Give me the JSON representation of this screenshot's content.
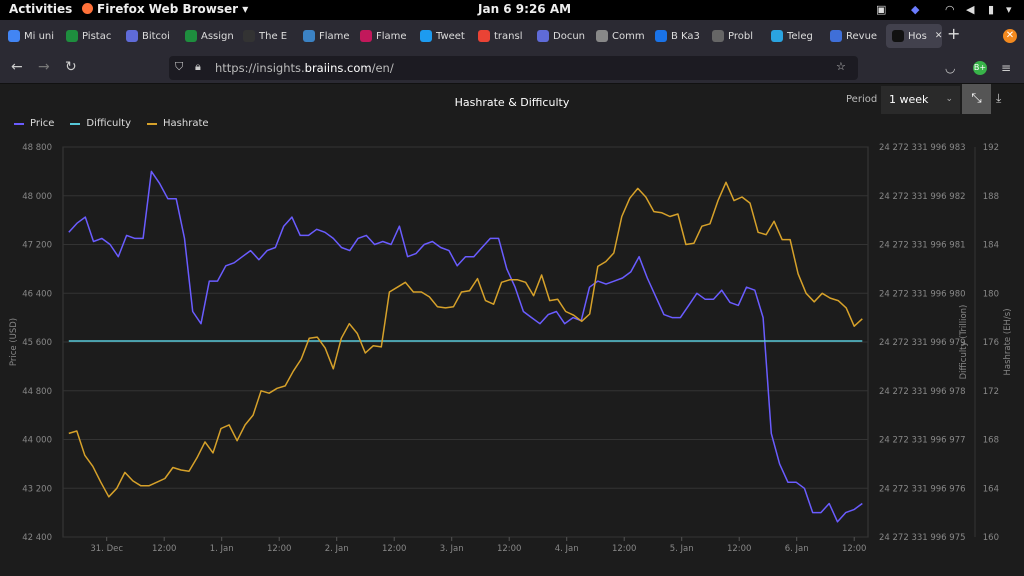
{
  "system_bar": {
    "activities": "Activities",
    "app_menu": "Firefox Web Browser",
    "clock": "Jan 6  9:26 AM"
  },
  "tabs": [
    {
      "label": "Mi uni",
      "color": "#4285f4"
    },
    {
      "label": "Pistac",
      "color": "#1e8e3e"
    },
    {
      "label": "Bitcoi",
      "color": "#5f6bd8"
    },
    {
      "label": "Assign",
      "color": "#1e8e3e"
    },
    {
      "label": "The E",
      "color": "#333333"
    },
    {
      "label": "Flame",
      "color": "#3b82c4"
    },
    {
      "label": "Flame",
      "color": "#c2185b"
    },
    {
      "label": "Tweet",
      "color": "#1d9bf0"
    },
    {
      "label": "transl",
      "color": "#ea4335"
    },
    {
      "label": "Docun",
      "color": "#5f6bd8"
    },
    {
      "label": "Comm",
      "color": "#888888"
    },
    {
      "label": "B Ka3",
      "color": "#1a73e8"
    },
    {
      "label": "Probl",
      "color": "#666666"
    },
    {
      "label": "Teleg",
      "color": "#2aa3e0"
    },
    {
      "label": "Revue",
      "color": "#3f6fd8"
    },
    {
      "label": "Hos",
      "color": "#111111"
    }
  ],
  "address_bar": {
    "url_prefix": "https://insights.",
    "url_host": "braiins.com",
    "url_path": "/en/"
  },
  "chart_controls": {
    "period_label": "Period",
    "period_value": "1 week"
  },
  "colors": {
    "price": "#6a5cff",
    "difficulty": "#56c8d8",
    "hashrate": "#d6a12a"
  },
  "chart_data": {
    "type": "line",
    "title": "Hashrate & Difficulty",
    "legend": [
      "Price",
      "Difficulty",
      "Hashrate"
    ],
    "legend_position": "top-left",
    "grid": true,
    "x_axis": {
      "range": [
        0,
        7
      ],
      "ticks": [
        {
          "pos": 0.38,
          "label": "31. Dec"
        },
        {
          "pos": 0.88,
          "label": "12:00"
        },
        {
          "pos": 1.38,
          "label": "1. Jan"
        },
        {
          "pos": 1.88,
          "label": "12:00"
        },
        {
          "pos": 2.38,
          "label": "2. Jan"
        },
        {
          "pos": 2.88,
          "label": "12:00"
        },
        {
          "pos": 3.38,
          "label": "3. Jan"
        },
        {
          "pos": 3.88,
          "label": "12:00"
        },
        {
          "pos": 4.38,
          "label": "4. Jan"
        },
        {
          "pos": 4.88,
          "label": "12:00"
        },
        {
          "pos": 5.38,
          "label": "5. Jan"
        },
        {
          "pos": 5.88,
          "label": "12:00"
        },
        {
          "pos": 6.38,
          "label": "6. Jan"
        },
        {
          "pos": 6.88,
          "label": "12:00"
        }
      ]
    },
    "y_left": {
      "label": "Price (USD)",
      "range": [
        42400,
        48800
      ],
      "ticks": [
        "42 400",
        "43 200",
        "44 000",
        "44 800",
        "45 600",
        "46 400",
        "47 200",
        "48 000",
        "48 800"
      ]
    },
    "y_mid": {
      "label": "Difficulty (Trillion)",
      "ticks": [
        "24 272 331 996 975",
        "24 272 331 996 976",
        "24 272 331 996 977",
        "24 272 331 996 978",
        "24 272 331 996 979",
        "24 272 331 996 980",
        "24 272 331 996 981",
        "24 272 331 996 982",
        "24 272 331 996 983"
      ]
    },
    "y_right": {
      "label": "Hashrate (EH/s)",
      "range": [
        160,
        192
      ],
      "ticks": [
        "160",
        "164",
        "168",
        "172",
        "176",
        "180",
        "184",
        "188",
        "192"
      ]
    },
    "series": [
      {
        "name": "Price",
        "axis": "left",
        "x_start": 0.05,
        "x_end": 6.95,
        "values": [
          47400,
          47550,
          47650,
          47250,
          47300,
          47200,
          47000,
          47350,
          47300,
          47300,
          48400,
          48200,
          47950,
          47950,
          47300,
          46100,
          45900,
          46600,
          46600,
          46850,
          46900,
          47000,
          47100,
          46950,
          47100,
          47150,
          47500,
          47650,
          47350,
          47350,
          47450,
          47400,
          47300,
          47150,
          47100,
          47300,
          47350,
          47200,
          47250,
          47200,
          47500,
          47000,
          47050,
          47200,
          47250,
          47150,
          47100,
          46850,
          47000,
          47000,
          47150,
          47300,
          47300,
          46800,
          46500,
          46100,
          46000,
          45900,
          46050,
          46100,
          45900,
          46000,
          45950,
          46500,
          46600,
          46550,
          46600,
          46650,
          46750,
          47000,
          46650,
          46350,
          46050,
          46000,
          46000,
          46200,
          46400,
          46300,
          46300,
          46450,
          46250,
          46200,
          46500,
          46450,
          46000,
          44100,
          43600,
          43300,
          43300,
          43200,
          42800,
          42800,
          42950,
          42650,
          42800,
          42850,
          42950
        ]
      },
      {
        "name": "Difficulty",
        "axis": "mid",
        "x_start": 0.05,
        "x_end": 6.95,
        "values": [
          24272331996979.02,
          24272331996979.02
        ]
      },
      {
        "name": "Hashrate",
        "axis": "right",
        "x_start": 0.05,
        "x_end": 6.95,
        "values": [
          168.5,
          168.7,
          166.7,
          165.8,
          164.5,
          163.3,
          164.0,
          165.3,
          164.6,
          164.2,
          164.2,
          164.5,
          164.8,
          165.7,
          165.5,
          165.4,
          166.5,
          167.8,
          166.9,
          168.9,
          169.2,
          167.9,
          169.2,
          170.0,
          172.0,
          171.8,
          172.2,
          172.4,
          173.6,
          174.6,
          176.3,
          176.4,
          175.5,
          173.8,
          176.3,
          177.5,
          176.7,
          175.1,
          175.7,
          175.6,
          180.1,
          180.5,
          180.9,
          180.1,
          180.1,
          179.7,
          178.9,
          178.8,
          178.9,
          180.1,
          180.2,
          181.2,
          179.4,
          179.1,
          180.9,
          181.1,
          181.1,
          180.9,
          179.8,
          181.5,
          179.4,
          179.5,
          178.5,
          178.2,
          177.7,
          178.3,
          182.2,
          182.6,
          183.3,
          186.3,
          187.8,
          188.6,
          187.9,
          186.7,
          186.6,
          186.3,
          186.5,
          184.0,
          184.1,
          185.5,
          185.7,
          187.6,
          189.1,
          187.6,
          187.9,
          187.4,
          185.0,
          184.8,
          185.9,
          184.4,
          184.4,
          181.6,
          180.0,
          179.3,
          180.0,
          179.6,
          179.4,
          178.8,
          177.3,
          177.9
        ]
      }
    ]
  }
}
